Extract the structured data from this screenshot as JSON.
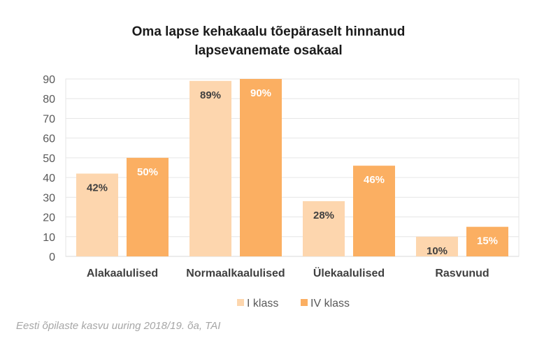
{
  "chart_data": {
    "type": "bar",
    "title_lines": [
      "Oma lapse kehakaalu tõepäraselt hinnanud",
      "lapsevanemate osakaal"
    ],
    "categories": [
      "Alakaalulised",
      "Normaalkaalulised",
      "Ülekaalulised",
      "Rasvunud"
    ],
    "series": [
      {
        "name": "I klass",
        "color": "#FDD6AE",
        "label_color": "#404040",
        "values": [
          42,
          89,
          28,
          10
        ],
        "labels": [
          "42%",
          "89%",
          "28%",
          "10%"
        ]
      },
      {
        "name": "IV klass",
        "color": "#FBAF62",
        "label_color": "#FFFFFF",
        "values": [
          50,
          90,
          46,
          15
        ],
        "labels": [
          "50%",
          "90%",
          "46%",
          "15%"
        ]
      }
    ],
    "ylim": [
      0,
      90
    ],
    "yticks": [
      0,
      10,
      20,
      30,
      40,
      50,
      60,
      70,
      80,
      90
    ],
    "xlabel": "",
    "ylabel": "",
    "grid": true,
    "legend_position": "bottom"
  },
  "source": "Eesti õpilaste kasvu uuring 2018/19. õa, TAI"
}
